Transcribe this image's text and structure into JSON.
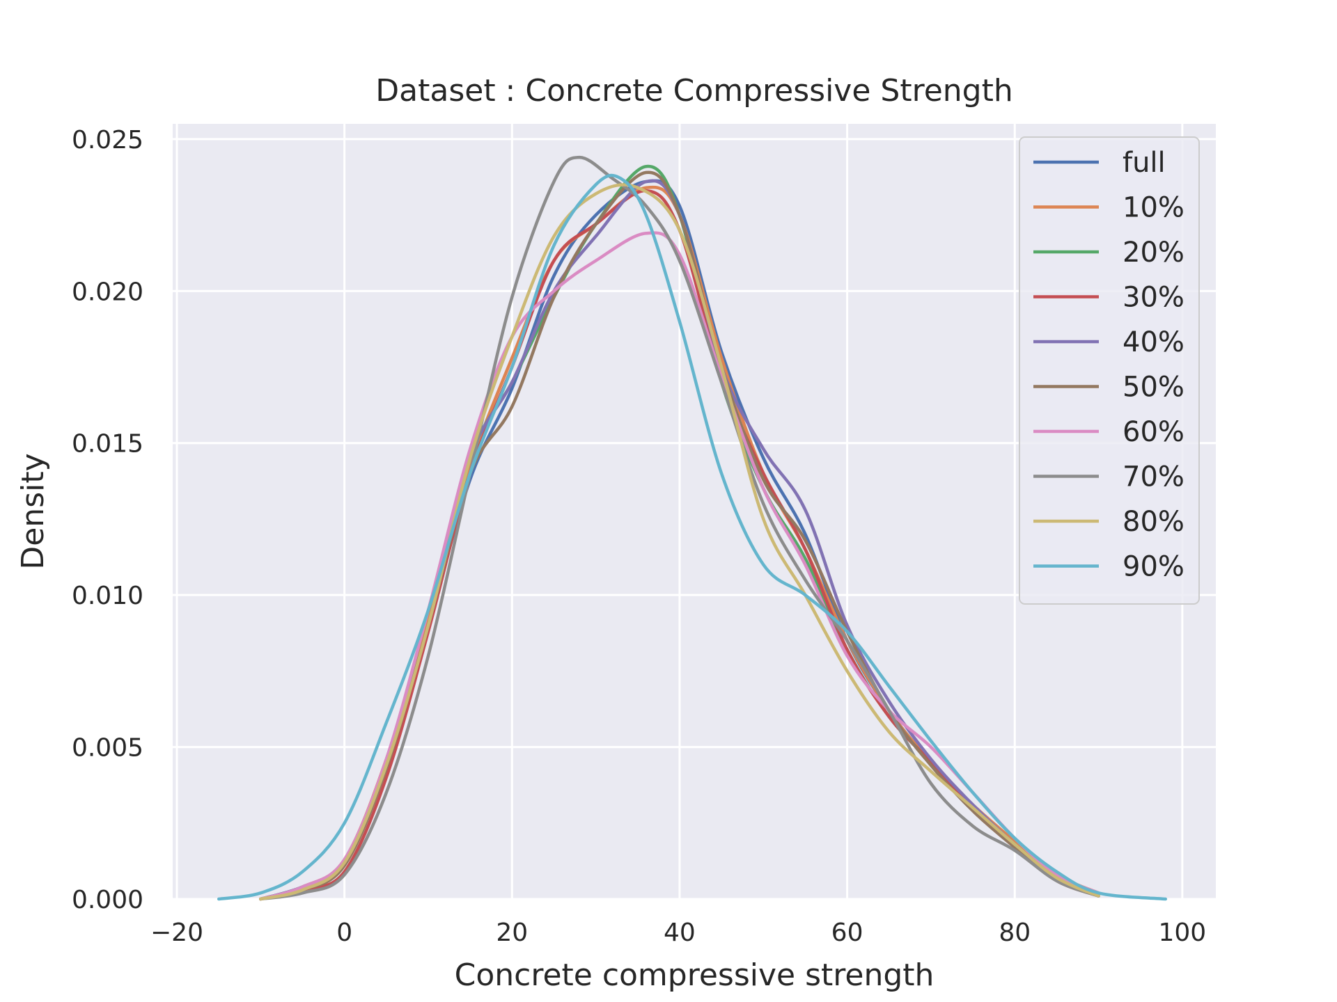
{
  "chart_data": {
    "type": "line",
    "title": "Dataset : Concrete Compressive Strength",
    "xlabel": "Concrete compressive strength",
    "ylabel": "Density",
    "xlim": [
      -20.5,
      104
    ],
    "ylim": [
      0,
      0.0255
    ],
    "xticks": [
      -20,
      0,
      20,
      40,
      60,
      80,
      100
    ],
    "xtick_labels": [
      "−20",
      "0",
      "20",
      "40",
      "60",
      "80",
      "100"
    ],
    "yticks": [
      0,
      0.005,
      0.01,
      0.015,
      0.02,
      0.025
    ],
    "ytick_labels": [
      "0.000",
      "0.005",
      "0.010",
      "0.015",
      "0.020",
      "0.025"
    ],
    "grid": true,
    "legend_position": "top-right",
    "series": [
      {
        "name": "full",
        "color": "#4c72b0",
        "points": [
          [
            -10,
            0
          ],
          [
            -5,
            0.0004
          ],
          [
            0,
            0.0012
          ],
          [
            5,
            0.0045
          ],
          [
            10,
            0.009
          ],
          [
            15,
            0.0138
          ],
          [
            20,
            0.0168
          ],
          [
            25,
            0.0205
          ],
          [
            30,
            0.0225
          ],
          [
            36,
            0.0236
          ],
          [
            40,
            0.0228
          ],
          [
            45,
            0.018
          ],
          [
            50,
            0.0145
          ],
          [
            55,
            0.012
          ],
          [
            60,
            0.0085
          ],
          [
            65,
            0.0062
          ],
          [
            70,
            0.0045
          ],
          [
            75,
            0.003
          ],
          [
            80,
            0.0018
          ],
          [
            85,
            0.0007
          ],
          [
            90,
            0.0001
          ]
        ]
      },
      {
        "name": "10%",
        "color": "#dd8452",
        "points": [
          [
            -10,
            0
          ],
          [
            -5,
            0.0004
          ],
          [
            0,
            0.0013
          ],
          [
            5,
            0.0046
          ],
          [
            10,
            0.0092
          ],
          [
            15,
            0.0142
          ],
          [
            20,
            0.0178
          ],
          [
            25,
            0.021
          ],
          [
            30,
            0.0222
          ],
          [
            36,
            0.0234
          ],
          [
            40,
            0.0225
          ],
          [
            45,
            0.0178
          ],
          [
            50,
            0.014
          ],
          [
            55,
            0.0115
          ],
          [
            60,
            0.0085
          ],
          [
            65,
            0.0062
          ],
          [
            70,
            0.0045
          ],
          [
            75,
            0.0031
          ],
          [
            80,
            0.0019
          ],
          [
            85,
            0.0008
          ],
          [
            90,
            0.0002
          ]
        ]
      },
      {
        "name": "20%",
        "color": "#55a868",
        "points": [
          [
            -10,
            0
          ],
          [
            -5,
            0.0004
          ],
          [
            0,
            0.0012
          ],
          [
            5,
            0.0045
          ],
          [
            10,
            0.009
          ],
          [
            15,
            0.0145
          ],
          [
            20,
            0.017
          ],
          [
            25,
            0.0198
          ],
          [
            30,
            0.0222
          ],
          [
            36,
            0.0241
          ],
          [
            40,
            0.0225
          ],
          [
            45,
            0.017
          ],
          [
            50,
            0.0135
          ],
          [
            55,
            0.0112
          ],
          [
            60,
            0.0082
          ],
          [
            65,
            0.006
          ],
          [
            70,
            0.0045
          ],
          [
            75,
            0.003
          ],
          [
            80,
            0.0018
          ],
          [
            85,
            0.0007
          ],
          [
            90,
            0.0001
          ]
        ]
      },
      {
        "name": "30%",
        "color": "#c44e52",
        "points": [
          [
            -10,
            0
          ],
          [
            -5,
            0.0003
          ],
          [
            0,
            0.0009
          ],
          [
            5,
            0.004
          ],
          [
            10,
            0.0088
          ],
          [
            15,
            0.014
          ],
          [
            20,
            0.0175
          ],
          [
            25,
            0.021
          ],
          [
            30,
            0.0222
          ],
          [
            36,
            0.0233
          ],
          [
            40,
            0.022
          ],
          [
            45,
            0.0172
          ],
          [
            50,
            0.014
          ],
          [
            55,
            0.0115
          ],
          [
            60,
            0.0082
          ],
          [
            65,
            0.006
          ],
          [
            70,
            0.0045
          ],
          [
            75,
            0.003
          ],
          [
            80,
            0.0018
          ],
          [
            85,
            0.0007
          ],
          [
            90,
            0.0001
          ]
        ]
      },
      {
        "name": "40%",
        "color": "#8172b3",
        "points": [
          [
            -10,
            0
          ],
          [
            -5,
            0.0004
          ],
          [
            0,
            0.0012
          ],
          [
            5,
            0.0045
          ],
          [
            10,
            0.009
          ],
          [
            15,
            0.0145
          ],
          [
            20,
            0.017
          ],
          [
            25,
            0.02
          ],
          [
            30,
            0.0218
          ],
          [
            36,
            0.0236
          ],
          [
            40,
            0.0225
          ],
          [
            45,
            0.0175
          ],
          [
            50,
            0.0148
          ],
          [
            55,
            0.0128
          ],
          [
            60,
            0.009
          ],
          [
            65,
            0.0065
          ],
          [
            70,
            0.0046
          ],
          [
            75,
            0.0031
          ],
          [
            80,
            0.0018
          ],
          [
            85,
            0.0007
          ],
          [
            90,
            0.0001
          ]
        ]
      },
      {
        "name": "50%",
        "color": "#937860",
        "points": [
          [
            -10,
            0
          ],
          [
            -5,
            0.0003
          ],
          [
            0,
            0.0011
          ],
          [
            5,
            0.0043
          ],
          [
            10,
            0.009
          ],
          [
            15,
            0.014
          ],
          [
            20,
            0.0162
          ],
          [
            25,
            0.0198
          ],
          [
            30,
            0.0222
          ],
          [
            36,
            0.0239
          ],
          [
            40,
            0.0225
          ],
          [
            45,
            0.0175
          ],
          [
            50,
            0.0138
          ],
          [
            55,
            0.0118
          ],
          [
            60,
            0.0088
          ],
          [
            65,
            0.0062
          ],
          [
            70,
            0.0044
          ],
          [
            75,
            0.0029
          ],
          [
            80,
            0.0017
          ],
          [
            85,
            0.0006
          ],
          [
            90,
            0.0001
          ]
        ]
      },
      {
        "name": "60%",
        "color": "#da8bc3",
        "points": [
          [
            -10,
            0
          ],
          [
            -5,
            0.0004
          ],
          [
            0,
            0.0013
          ],
          [
            5,
            0.0046
          ],
          [
            10,
            0.0095
          ],
          [
            15,
            0.0148
          ],
          [
            20,
            0.0185
          ],
          [
            25,
            0.02
          ],
          [
            30,
            0.021
          ],
          [
            36,
            0.0219
          ],
          [
            40,
            0.0212
          ],
          [
            45,
            0.0172
          ],
          [
            50,
            0.0135
          ],
          [
            55,
            0.011
          ],
          [
            60,
            0.008
          ],
          [
            65,
            0.0062
          ],
          [
            70,
            0.005
          ],
          [
            75,
            0.0035
          ],
          [
            80,
            0.002
          ],
          [
            85,
            0.0008
          ],
          [
            90,
            0.0002
          ]
        ]
      },
      {
        "name": "70%",
        "color": "#8c8c8c",
        "points": [
          [
            -10,
            0
          ],
          [
            -5,
            0.0002
          ],
          [
            0,
            0.0008
          ],
          [
            5,
            0.0035
          ],
          [
            10,
            0.008
          ],
          [
            15,
            0.014
          ],
          [
            20,
            0.0198
          ],
          [
            25,
            0.0236
          ],
          [
            28,
            0.0244
          ],
          [
            32,
            0.0237
          ],
          [
            36,
            0.0228
          ],
          [
            40,
            0.021
          ],
          [
            45,
            0.017
          ],
          [
            50,
            0.013
          ],
          [
            55,
            0.0105
          ],
          [
            60,
            0.0085
          ],
          [
            65,
            0.0062
          ],
          [
            70,
            0.0038
          ],
          [
            75,
            0.0024
          ],
          [
            80,
            0.0016
          ],
          [
            85,
            0.0006
          ],
          [
            90,
            0.0001
          ]
        ]
      },
      {
        "name": "80%",
        "color": "#ccb974",
        "points": [
          [
            -10,
            0
          ],
          [
            -5,
            0.0003
          ],
          [
            0,
            0.0012
          ],
          [
            5,
            0.0044
          ],
          [
            10,
            0.009
          ],
          [
            15,
            0.0145
          ],
          [
            20,
            0.0185
          ],
          [
            25,
            0.0218
          ],
          [
            30,
            0.0232
          ],
          [
            35,
            0.0234
          ],
          [
            40,
            0.022
          ],
          [
            45,
            0.0175
          ],
          [
            50,
            0.0125
          ],
          [
            55,
            0.01
          ],
          [
            60,
            0.0075
          ],
          [
            65,
            0.0055
          ],
          [
            70,
            0.0042
          ],
          [
            75,
            0.003
          ],
          [
            80,
            0.0018
          ],
          [
            85,
            0.0007
          ],
          [
            90,
            0.0001
          ]
        ]
      },
      {
        "name": "90%",
        "color": "#64b5cd",
        "points": [
          [
            -15,
            0
          ],
          [
            -10,
            0.0002
          ],
          [
            -5,
            0.0009
          ],
          [
            0,
            0.0025
          ],
          [
            5,
            0.0058
          ],
          [
            10,
            0.0095
          ],
          [
            15,
            0.014
          ],
          [
            20,
            0.0175
          ],
          [
            25,
            0.0215
          ],
          [
            30,
            0.0235
          ],
          [
            33,
            0.0237
          ],
          [
            36,
            0.0225
          ],
          [
            40,
            0.019
          ],
          [
            45,
            0.014
          ],
          [
            50,
            0.011
          ],
          [
            55,
            0.01
          ],
          [
            60,
            0.0088
          ],
          [
            65,
            0.007
          ],
          [
            70,
            0.0052
          ],
          [
            75,
            0.0035
          ],
          [
            80,
            0.002
          ],
          [
            85,
            0.0009
          ],
          [
            90,
            0.0002
          ],
          [
            98,
            0
          ]
        ]
      }
    ]
  }
}
